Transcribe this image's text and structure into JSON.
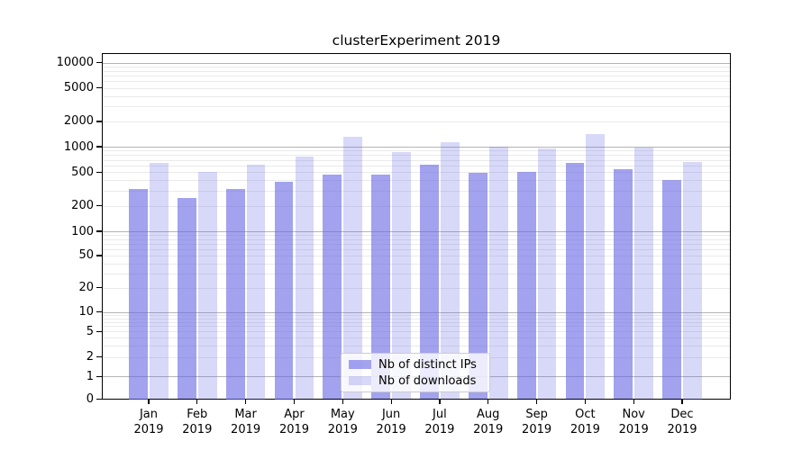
{
  "title": "clusterExperiment 2019",
  "legend": {
    "items": [
      {
        "label": "Nb of distinct IPs",
        "color": "rgba(100,100,228,0.60)"
      },
      {
        "label": "Nb of downloads",
        "color": "rgba(100,100,228,0.25)"
      }
    ]
  },
  "chart_data": {
    "type": "bar",
    "title": "clusterExperiment 2019",
    "categories": [
      "Jan 2019",
      "Feb 2019",
      "Mar 2019",
      "Apr 2019",
      "May 2019",
      "Jun 2019",
      "Jul 2019",
      "Aug 2019",
      "Sep 2019",
      "Oct 2019",
      "Nov 2019",
      "Dec 2019"
    ],
    "series": [
      {
        "name": "Nb of distinct IPs",
        "color": "rgba(100,100,228,0.60)",
        "values": [
          320,
          250,
          320,
          385,
          470,
          470,
          610,
          490,
          505,
          650,
          545,
          400
        ]
      },
      {
        "name": "Nb of downloads",
        "color": "rgba(100,100,228,0.25)",
        "values": [
          640,
          500,
          620,
          760,
          1320,
          870,
          1120,
          1010,
          960,
          1400,
          980,
          660
        ]
      }
    ],
    "yscale": "symlog",
    "ylim": [
      0,
      14000
    ],
    "yticks": [
      0,
      1,
      2,
      5,
      10,
      20,
      50,
      100,
      200,
      500,
      1000,
      2000,
      5000,
      10000
    ],
    "ytick_labels": [
      "0",
      "1",
      "2",
      "5",
      "10",
      "20",
      "50",
      "100",
      "200",
      "500",
      "1000",
      "2000",
      "5000",
      "10000"
    ],
    "major_gridlines": [
      1,
      10,
      100,
      1000,
      10000
    ],
    "grid": true,
    "legend_position": "lower center",
    "xlabel": "",
    "ylabel": "",
    "colors": {
      "grid_major": "#b4b4b4",
      "grid_minor": "#eaeaea",
      "axis": "#000000",
      "background": "#ffffff"
    }
  }
}
